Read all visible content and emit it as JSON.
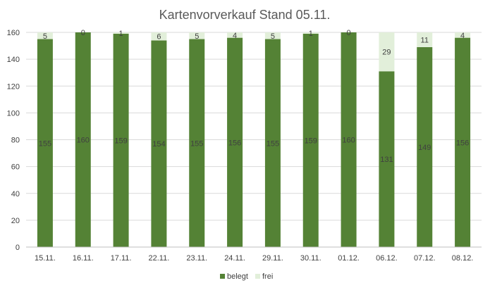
{
  "chart_data": {
    "type": "bar",
    "stacked": true,
    "title": "Kartenvorverkauf Stand 05.11.",
    "xlabel": "",
    "ylabel": "",
    "ylim": [
      0,
      160
    ],
    "yticks": [
      0,
      20,
      40,
      60,
      80,
      100,
      120,
      140,
      160
    ],
    "grid": true,
    "legend_position": "bottom",
    "categories": [
      "15.11.",
      "16.11.",
      "17.11.",
      "22.11.",
      "23.11.",
      "24.11.",
      "29.11.",
      "30.11.",
      "01.12.",
      "06.12.",
      "07.12.",
      "08.12."
    ],
    "series": [
      {
        "name": "belegt",
        "color": "#548235",
        "values": [
          155,
          160,
          159,
          154,
          155,
          156,
          155,
          159,
          160,
          131,
          149,
          156
        ]
      },
      {
        "name": "frei",
        "color": "#E2EFDA",
        "values": [
          5,
          0,
          1,
          6,
          5,
          4,
          5,
          1,
          0,
          29,
          11,
          4
        ]
      }
    ]
  }
}
